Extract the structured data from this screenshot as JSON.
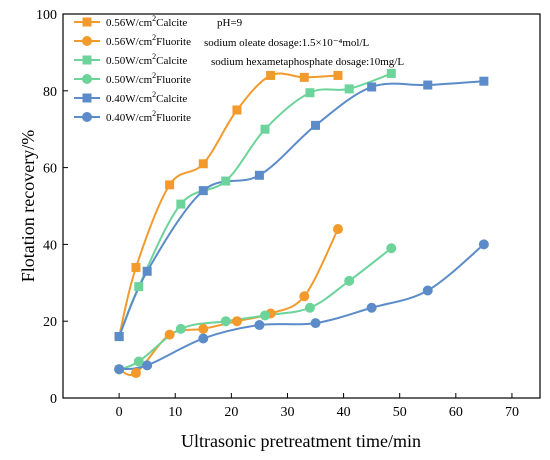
{
  "chart_data": {
    "type": "line",
    "xlabel": "Ultrasonic pretreatment time/min",
    "ylabel": "Flotation recovery/%",
    "xlim": [
      -10,
      75
    ],
    "ylim": [
      0,
      100
    ],
    "xticks": [
      0,
      10,
      20,
      30,
      40,
      50,
      60,
      70
    ],
    "yticks": [
      0,
      20,
      40,
      60,
      80,
      100
    ],
    "grid": false,
    "legend_position": "top-left",
    "annotations": [
      "pH=9",
      "sodium oleate dosage:1.5×10⁻⁴mol/L",
      "sodium hexametaphosphate dosage:10mg/L"
    ],
    "series": [
      {
        "name_main": "0.56W/cm",
        "name_sup": "2",
        "name_tail": "Calcite",
        "color": "#F39A2C",
        "marker": "square",
        "x": [
          0,
          3,
          9,
          15,
          21,
          27,
          33,
          39
        ],
        "y": [
          16,
          34,
          55.5,
          61,
          75,
          84,
          83.5,
          84
        ]
      },
      {
        "name_main": "0.56W/cm",
        "name_sup": "2",
        "name_tail": "Fluorite",
        "color": "#F39A2C",
        "marker": "circle",
        "x": [
          0,
          3,
          9,
          15,
          21,
          27,
          33,
          39
        ],
        "y": [
          7.5,
          6.5,
          16.5,
          18,
          20,
          22,
          26.5,
          44
        ]
      },
      {
        "name_main": "0.50W/cm",
        "name_sup": "2",
        "name_tail": "Calcite",
        "color": "#6CD39A",
        "marker": "square",
        "x": [
          0,
          3.5,
          11,
          19,
          26,
          34,
          41,
          48.5
        ],
        "y": [
          16,
          29,
          50.5,
          56.5,
          70,
          79.5,
          80.5,
          84.5
        ]
      },
      {
        "name_main": "0.50W/cm",
        "name_sup": "2",
        "name_tail": "Fluorite",
        "color": "#6CD39A",
        "marker": "circle",
        "x": [
          0,
          3.5,
          11,
          19,
          26,
          34,
          41,
          48.5
        ],
        "y": [
          7.5,
          9.5,
          18,
          20,
          21.5,
          23.5,
          30.5,
          39
        ]
      },
      {
        "name_main": "0.40W/cm",
        "name_sup": "2",
        "name_tail": "Calcite",
        "color": "#5B8CC9",
        "marker": "square",
        "x": [
          0,
          5,
          15,
          25,
          35,
          45,
          55,
          65
        ],
        "y": [
          16,
          33,
          54,
          58,
          71,
          81,
          81.5,
          82.5
        ]
      },
      {
        "name_main": "0.40W/cm",
        "name_sup": "2",
        "name_tail": "Fluorite",
        "color": "#5B8CC9",
        "marker": "circle",
        "x": [
          0,
          5,
          15,
          25,
          35,
          45,
          55,
          65
        ],
        "y": [
          7.5,
          8.5,
          15.5,
          19,
          19.5,
          23.5,
          28,
          40
        ]
      }
    ]
  }
}
